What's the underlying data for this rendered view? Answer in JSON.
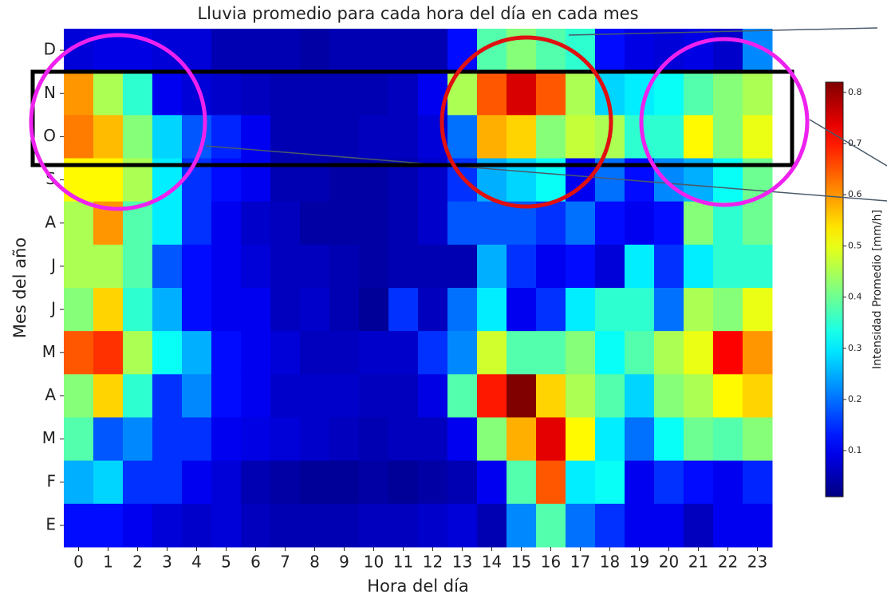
{
  "chart_data": {
    "type": "heatmap",
    "title": "Lluvia promedio para cada hora del día en cada mes",
    "x_label": "Hora del día",
    "y_label": "Mes del año",
    "colorbar_label": "Intensidad Promedio [mm/h]",
    "colormap": "jet",
    "x": [
      0,
      1,
      2,
      3,
      4,
      5,
      6,
      7,
      8,
      9,
      10,
      11,
      12,
      13,
      14,
      15,
      16,
      17,
      18,
      19,
      20,
      21,
      22,
      23
    ],
    "y_categories": [
      "D",
      "N",
      "O",
      "S",
      "A",
      "J",
      "J",
      "M",
      "A",
      "M",
      "F",
      "E"
    ],
    "values": [
      [
        0.08,
        0.09,
        0.09,
        0.08,
        0.08,
        0.05,
        0.05,
        0.05,
        0.04,
        0.05,
        0.05,
        0.05,
        0.05,
        0.12,
        0.38,
        0.42,
        0.38,
        0.35,
        0.12,
        0.09,
        0.08,
        0.09,
        0.07,
        0.22
      ],
      [
        0.6,
        0.45,
        0.35,
        0.1,
        0.08,
        0.07,
        0.06,
        0.05,
        0.05,
        0.05,
        0.05,
        0.06,
        0.1,
        0.45,
        0.65,
        0.75,
        0.65,
        0.45,
        0.28,
        0.3,
        0.32,
        0.38,
        0.42,
        0.45
      ],
      [
        0.62,
        0.57,
        0.42,
        0.28,
        0.18,
        0.14,
        0.1,
        0.05,
        0.05,
        0.05,
        0.06,
        0.06,
        0.08,
        0.2,
        0.58,
        0.55,
        0.42,
        0.47,
        0.45,
        0.35,
        0.35,
        0.52,
        0.42,
        0.5
      ],
      [
        0.52,
        0.52,
        0.45,
        0.3,
        0.15,
        0.12,
        0.1,
        0.05,
        0.05,
        0.04,
        0.04,
        0.05,
        0.07,
        0.15,
        0.25,
        0.28,
        0.32,
        0.1,
        0.2,
        0.12,
        0.22,
        0.25,
        0.32,
        0.4
      ],
      [
        0.45,
        0.6,
        0.38,
        0.3,
        0.15,
        0.1,
        0.07,
        0.06,
        0.04,
        0.04,
        0.04,
        0.05,
        0.07,
        0.18,
        0.18,
        0.18,
        0.15,
        0.2,
        0.12,
        0.1,
        0.12,
        0.42,
        0.35,
        0.4
      ],
      [
        0.45,
        0.45,
        0.38,
        0.18,
        0.12,
        0.1,
        0.08,
        0.06,
        0.06,
        0.05,
        0.04,
        0.05,
        0.05,
        0.05,
        0.25,
        0.15,
        0.1,
        0.12,
        0.08,
        0.3,
        0.15,
        0.3,
        0.35,
        0.35
      ],
      [
        0.42,
        0.55,
        0.35,
        0.25,
        0.12,
        0.1,
        0.1,
        0.06,
        0.07,
        0.05,
        0.03,
        0.15,
        0.06,
        0.2,
        0.3,
        0.1,
        0.15,
        0.3,
        0.35,
        0.35,
        0.2,
        0.45,
        0.42,
        0.5
      ],
      [
        0.65,
        0.68,
        0.45,
        0.32,
        0.25,
        0.12,
        0.1,
        0.08,
        0.06,
        0.06,
        0.07,
        0.07,
        0.15,
        0.22,
        0.48,
        0.38,
        0.38,
        0.42,
        0.32,
        0.38,
        0.45,
        0.5,
        0.72,
        0.6
      ],
      [
        0.42,
        0.55,
        0.35,
        0.15,
        0.22,
        0.12,
        0.1,
        0.07,
        0.07,
        0.07,
        0.06,
        0.06,
        0.09,
        0.38,
        0.7,
        0.82,
        0.55,
        0.45,
        0.38,
        0.28,
        0.42,
        0.45,
        0.52,
        0.55
      ],
      [
        0.38,
        0.18,
        0.22,
        0.15,
        0.15,
        0.1,
        0.09,
        0.08,
        0.07,
        0.06,
        0.05,
        0.06,
        0.06,
        0.1,
        0.42,
        0.58,
        0.74,
        0.52,
        0.3,
        0.2,
        0.32,
        0.4,
        0.38,
        0.42
      ],
      [
        0.25,
        0.28,
        0.15,
        0.15,
        0.1,
        0.08,
        0.05,
        0.04,
        0.03,
        0.03,
        0.04,
        0.03,
        0.04,
        0.05,
        0.1,
        0.38,
        0.65,
        0.3,
        0.32,
        0.1,
        0.15,
        0.12,
        0.1,
        0.14
      ],
      [
        0.12,
        0.12,
        0.1,
        0.08,
        0.07,
        0.08,
        0.06,
        0.05,
        0.05,
        0.05,
        0.06,
        0.06,
        0.07,
        0.08,
        0.05,
        0.22,
        0.38,
        0.2,
        0.15,
        0.1,
        0.1,
        0.06,
        0.1,
        0.1
      ]
    ],
    "clim": [
      0.01,
      0.82
    ],
    "cticks": [
      0.1,
      0.2,
      0.3,
      0.4,
      0.5,
      0.6,
      0.7,
      0.8
    ]
  }
}
